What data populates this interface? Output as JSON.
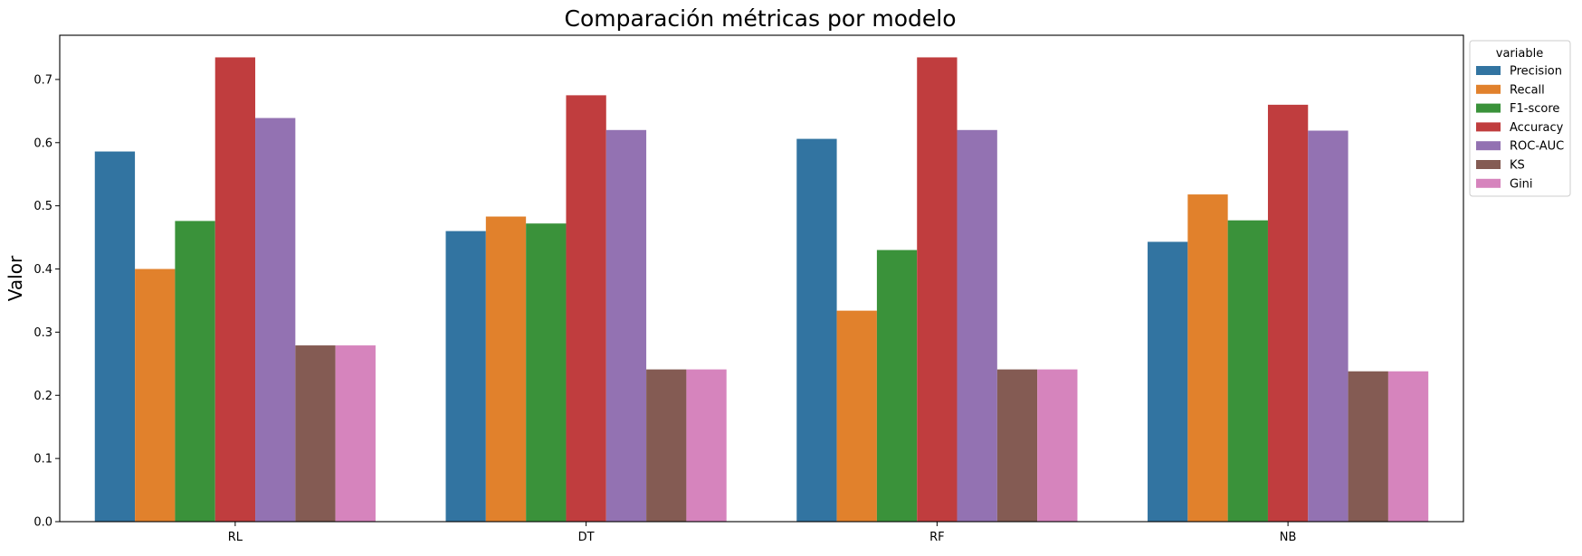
{
  "chart_data": {
    "type": "bar",
    "title": "Comparación métricas por modelo",
    "xlabel": "",
    "ylabel": "Valor",
    "categories": [
      "RL",
      "DT",
      "RF",
      "NB"
    ],
    "series": [
      {
        "name": "Precision",
        "color": "#3274a1",
        "values": [
          0.586,
          0.46,
          0.606,
          0.443
        ]
      },
      {
        "name": "Recall",
        "color": "#e1812c",
        "values": [
          0.4,
          0.483,
          0.334,
          0.518
        ]
      },
      {
        "name": "F1-score",
        "color": "#3a923a",
        "values": [
          0.476,
          0.472,
          0.43,
          0.477
        ]
      },
      {
        "name": "Accuracy",
        "color": "#c03d3e",
        "values": [
          0.735,
          0.675,
          0.735,
          0.66
        ]
      },
      {
        "name": "ROC-AUC",
        "color": "#9372b2",
        "values": [
          0.639,
          0.62,
          0.62,
          0.619
        ]
      },
      {
        "name": "KS",
        "color": "#845b53",
        "values": [
          0.279,
          0.241,
          0.241,
          0.238
        ]
      },
      {
        "name": "Gini",
        "color": "#d684bd",
        "values": [
          0.279,
          0.241,
          0.241,
          0.238
        ]
      }
    ],
    "ylim": [
      0,
      0.77
    ],
    "yticks": [
      0.0,
      0.1,
      0.2,
      0.3,
      0.4,
      0.5,
      0.6,
      0.7
    ],
    "ytick_labels": [
      "0.0",
      "0.1",
      "0.2",
      "0.3",
      "0.4",
      "0.5",
      "0.6",
      "0.7"
    ],
    "grid": false,
    "legend": {
      "title": "variable",
      "placement": "outside-top-right"
    }
  }
}
